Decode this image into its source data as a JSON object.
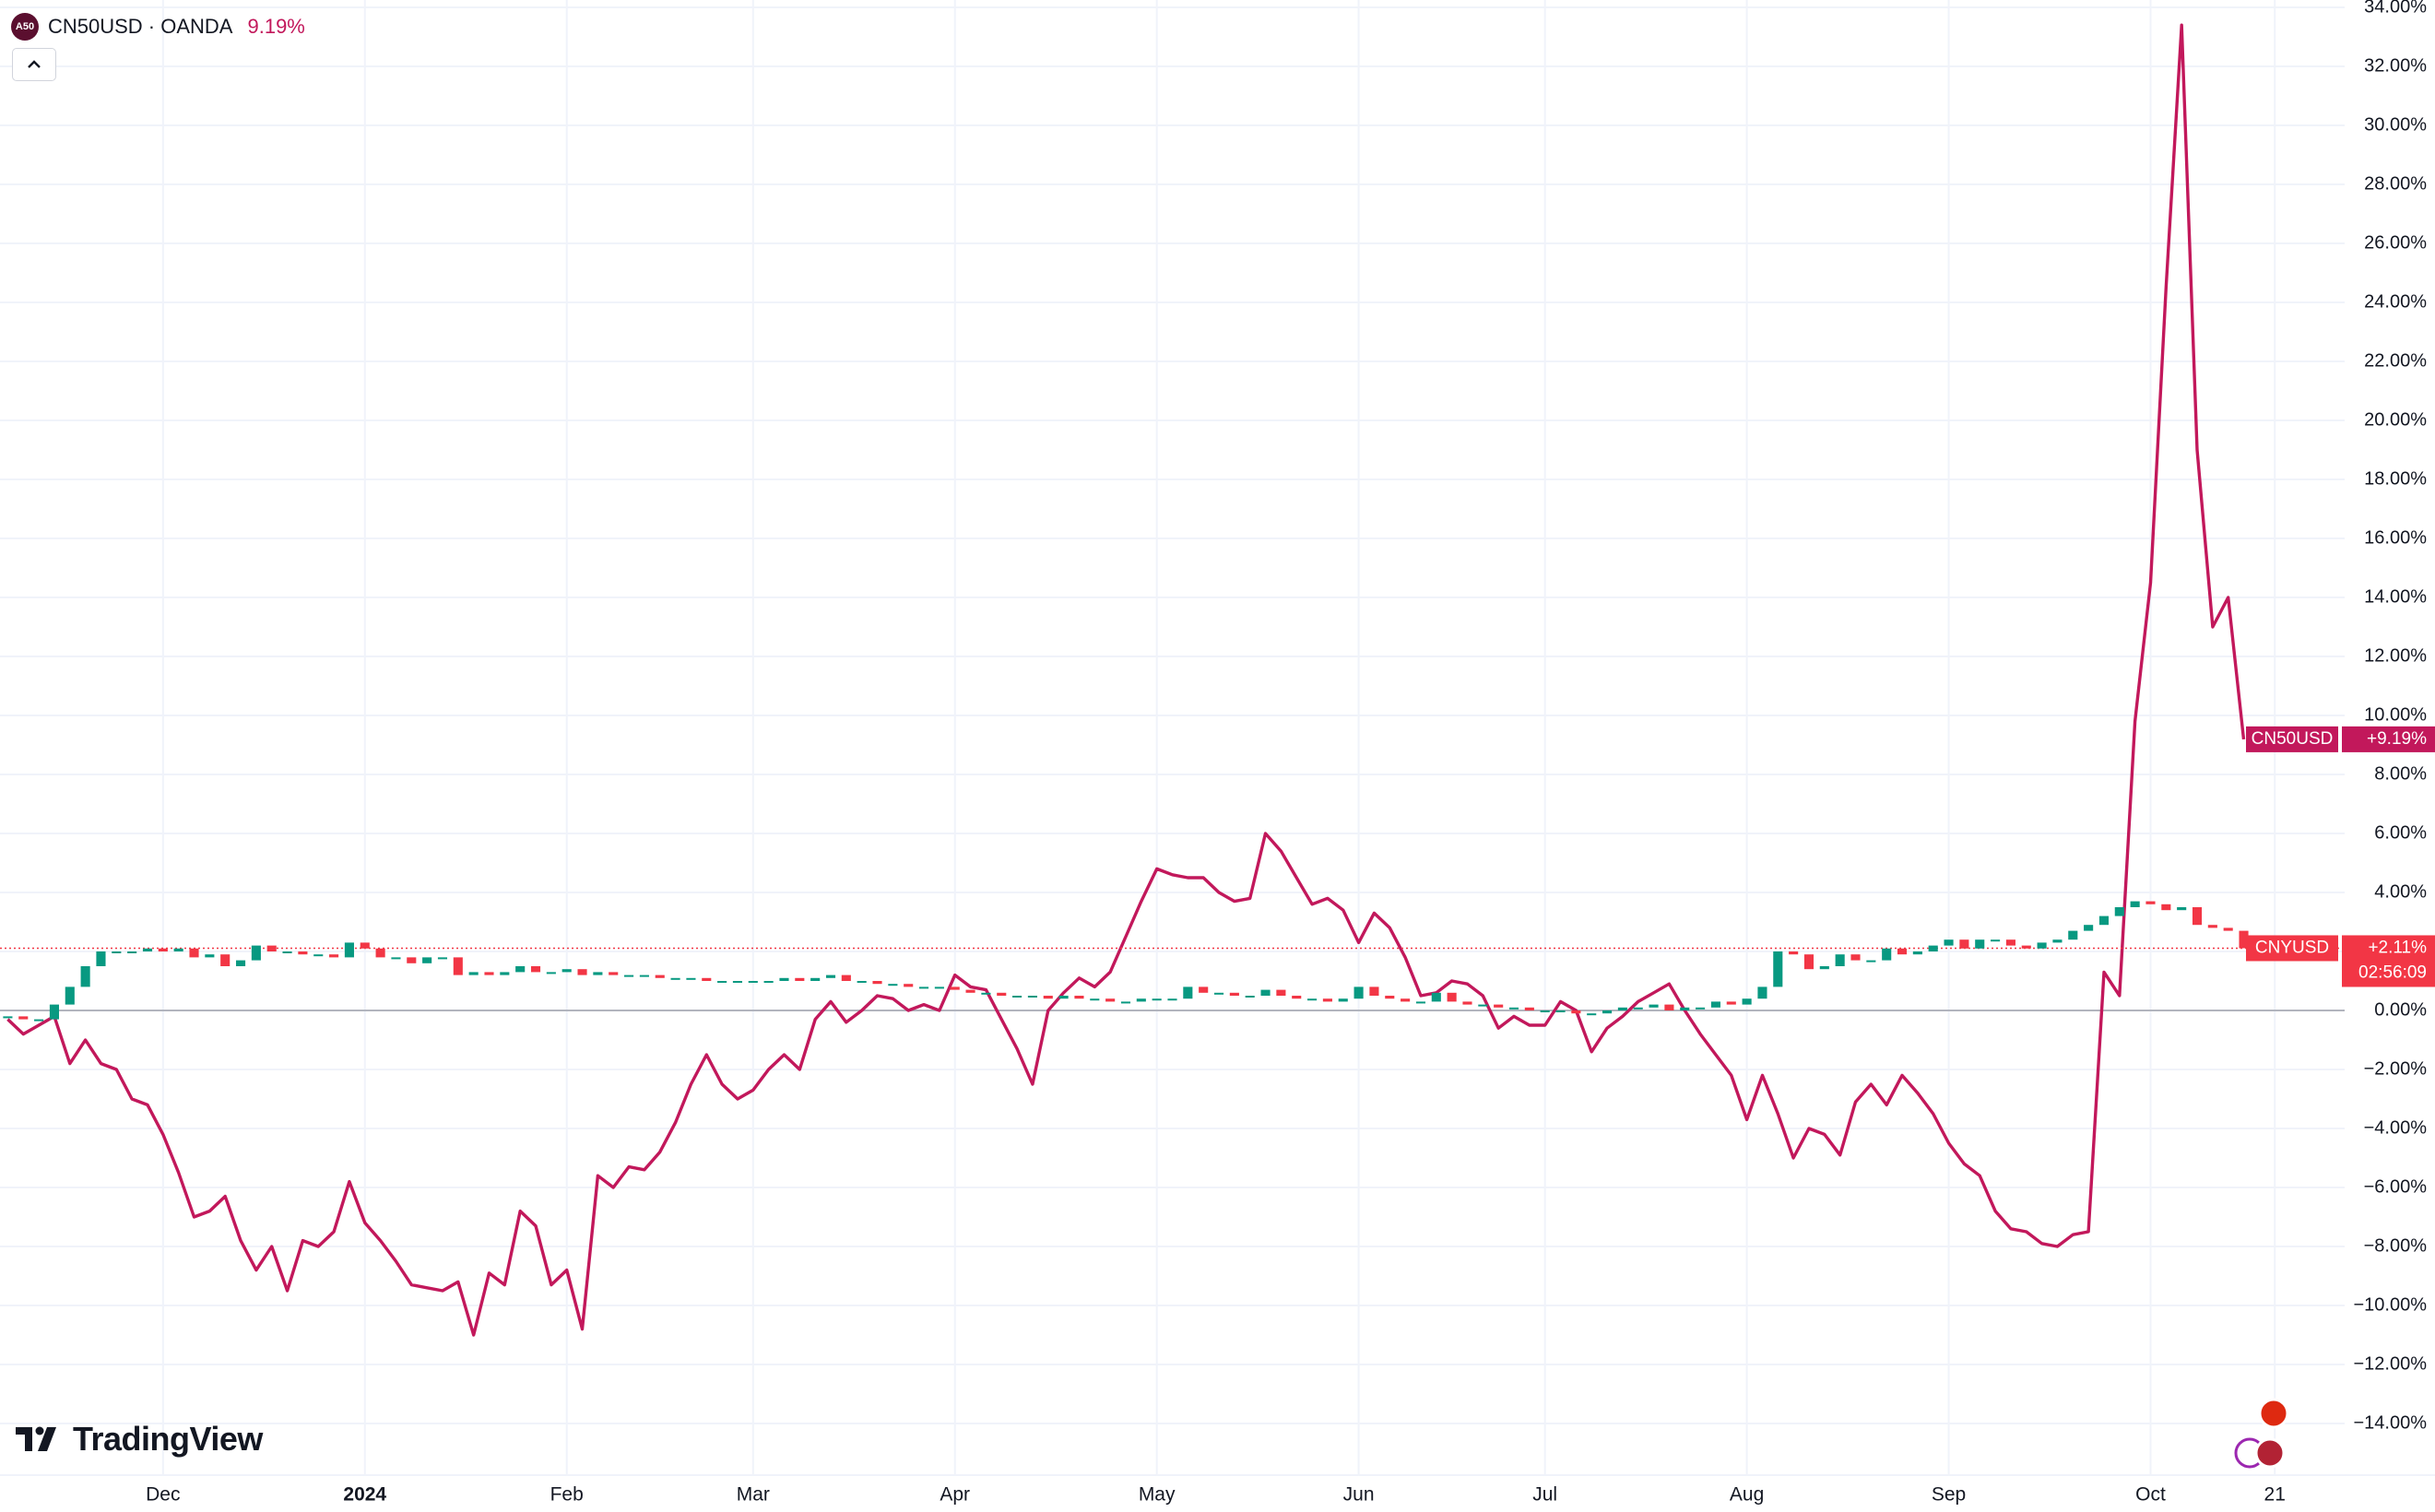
{
  "header": {
    "icon": "A50",
    "symbol": "CN50USD · OANDA",
    "change": "9.19%"
  },
  "logo": "TradingView",
  "chart_data": {
    "type": "line",
    "categories": [
      null,
      null,
      null,
      null,
      null,
      null,
      null,
      null,
      null,
      null,
      "Dec",
      null,
      null,
      null,
      null,
      null,
      null,
      null,
      null,
      null,
      null,
      null,
      null,
      "2024",
      null,
      null,
      null,
      null,
      null,
      null,
      null,
      null,
      null,
      null,
      null,
      null,
      "Feb",
      null,
      null,
      null,
      null,
      null,
      null,
      null,
      null,
      null,
      null,
      null,
      "Mar",
      null,
      null,
      null,
      null,
      null,
      null,
      null,
      null,
      null,
      null,
      null,
      null,
      "Apr",
      null,
      null,
      null,
      null,
      null,
      null,
      null,
      null,
      null,
      null,
      null,
      null,
      "May",
      null,
      null,
      null,
      null,
      null,
      null,
      null,
      null,
      null,
      null,
      null,
      null,
      "Jun",
      null,
      null,
      null,
      null,
      null,
      null,
      null,
      null,
      null,
      null,
      null,
      "Jul",
      null,
      null,
      null,
      null,
      null,
      null,
      null,
      null,
      null,
      null,
      null,
      null,
      "Aug",
      null,
      null,
      null,
      null,
      null,
      null,
      null,
      null,
      null,
      null,
      null,
      null,
      "Sep",
      null,
      null,
      null,
      null,
      null,
      null,
      null,
      null,
      null,
      null,
      null,
      null,
      "Oct",
      null,
      null,
      null,
      null,
      null,
      null,
      null,
      "21",
      null,
      null,
      null,
      null
    ],
    "series": [
      {
        "name": "CN50USD",
        "type": "line",
        "color": "#c2185b",
        "last_label": "+9.19%",
        "values": [
          -0.3,
          -0.8,
          -0.5,
          -0.2,
          -1.8,
          -1.0,
          -1.8,
          -2.0,
          -3.0,
          -3.2,
          -4.2,
          -5.5,
          -7.0,
          -6.8,
          -6.3,
          -7.8,
          -8.8,
          -8.0,
          -9.5,
          -7.8,
          -8.0,
          -7.5,
          -5.8,
          -7.2,
          -7.8,
          -8.5,
          -9.3,
          -9.4,
          -9.5,
          -9.2,
          -11.0,
          -8.9,
          -9.3,
          -6.8,
          -7.3,
          -9.3,
          -8.8,
          -10.8,
          -5.6,
          -6.0,
          -5.3,
          -5.4,
          -4.8,
          -3.8,
          -2.5,
          -1.5,
          -2.5,
          -3.0,
          -2.7,
          -2.0,
          -1.5,
          -2.0,
          -0.3,
          0.3,
          -0.4,
          0.0,
          0.5,
          0.4,
          0.0,
          0.2,
          0.0,
          1.2,
          0.8,
          0.7,
          -0.3,
          -1.3,
          -2.5,
          0.0,
          0.6,
          1.1,
          0.8,
          1.3,
          2.5,
          3.7,
          4.8,
          4.6,
          4.5,
          4.5,
          4.0,
          3.7,
          3.8,
          6.0,
          5.4,
          4.5,
          3.6,
          3.8,
          3.4,
          2.3,
          3.3,
          2.8,
          1.8,
          0.5,
          0.6,
          1.0,
          0.9,
          0.5,
          -0.6,
          -0.2,
          -0.5,
          -0.5,
          0.3,
          0.0,
          -1.4,
          -0.6,
          -0.2,
          0.3,
          0.6,
          0.9,
          0.0,
          -0.8,
          -1.5,
          -2.2,
          -3.7,
          -2.2,
          -3.5,
          -5.0,
          -4.0,
          -4.2,
          -4.9,
          -3.1,
          -2.5,
          -3.2,
          -2.2,
          -2.8,
          -3.5,
          -4.5,
          -5.2,
          -5.6,
          -6.8,
          -7.4,
          -7.5,
          -7.9,
          -8.0,
          -7.6,
          -7.5,
          1.3,
          0.5,
          9.8,
          14.5,
          24.5,
          33.4,
          19.0,
          13.0,
          14.0,
          9.19,
          null,
          null,
          null,
          null,
          null,
          null
        ]
      },
      {
        "name": "CNYUSD",
        "type": "candlestick",
        "color": "#f23645",
        "up_color": "#089981",
        "down_color": "#f23645",
        "last_label": "+2.11%",
        "countdown": "02:56:09",
        "values": [
          -0.2,
          -0.3,
          -0.3,
          0.2,
          0.8,
          1.5,
          2.0,
          2.0,
          2.0,
          2.1,
          2.0,
          2.1,
          1.8,
          1.9,
          1.5,
          1.7,
          2.2,
          2.0,
          2.0,
          1.9,
          1.9,
          1.8,
          2.3,
          2.1,
          1.8,
          1.8,
          1.6,
          1.8,
          1.8,
          1.2,
          1.3,
          1.2,
          1.3,
          1.5,
          1.3,
          1.3,
          1.4,
          1.2,
          1.3,
          1.2,
          1.2,
          1.2,
          1.1,
          1.1,
          1.1,
          1.0,
          1.0,
          1.0,
          1.0,
          1.0,
          1.1,
          1.0,
          1.1,
          1.2,
          1.0,
          1.0,
          0.9,
          0.9,
          0.8,
          0.8,
          0.8,
          0.7,
          0.6,
          0.6,
          0.5,
          0.5,
          0.5,
          0.4,
          0.5,
          0.4,
          0.4,
          0.3,
          0.3,
          0.4,
          0.4,
          0.4,
          0.8,
          0.6,
          0.6,
          0.5,
          0.5,
          0.7,
          0.5,
          0.4,
          0.4,
          0.3,
          0.4,
          0.8,
          0.5,
          0.4,
          0.3,
          0.3,
          0.6,
          0.3,
          0.2,
          0.2,
          0.1,
          0.1,
          0.0,
          0.0,
          0.0,
          -0.1,
          -0.1,
          0.0,
          0.1,
          0.1,
          0.2,
          0.0,
          0.1,
          0.1,
          0.3,
          0.2,
          0.4,
          0.8,
          2.0,
          1.9,
          1.4,
          1.5,
          1.9,
          1.7,
          1.7,
          2.1,
          1.9,
          2.0,
          2.2,
          2.4,
          2.1,
          2.4,
          2.4,
          2.2,
          2.1,
          2.3,
          2.4,
          2.7,
          2.9,
          3.2,
          3.5,
          3.7,
          3.6,
          3.4,
          3.5,
          2.9,
          2.8,
          2.7,
          2.11,
          null,
          null,
          null,
          null,
          null,
          null
        ]
      }
    ],
    "ylim": [
      -15.75,
      34.25
    ],
    "yticks": [
      {
        "value": 34,
        "label": "34.00%"
      },
      {
        "value": 32,
        "label": "32.00%"
      },
      {
        "value": 30,
        "label": "30.00%"
      },
      {
        "value": 28,
        "label": "28.00%"
      },
      {
        "value": 26,
        "label": "26.00%"
      },
      {
        "value": 24,
        "label": "24.00%"
      },
      {
        "value": 22,
        "label": "22.00%"
      },
      {
        "value": 20,
        "label": "20.00%"
      },
      {
        "value": 18,
        "label": "18.00%"
      },
      {
        "value": 16,
        "label": "16.00%"
      },
      {
        "value": 14,
        "label": "14.00%"
      },
      {
        "value": 12,
        "label": "12.00%"
      },
      {
        "value": 10,
        "label": "10.00%"
      },
      {
        "value": 8,
        "label": "8.00%"
      },
      {
        "value": 6,
        "label": "6.00%"
      },
      {
        "value": 4,
        "label": "4.00%"
      },
      {
        "value": 2,
        "label": "2.00%"
      },
      {
        "value": 0,
        "label": "0.00%"
      },
      {
        "value": -2,
        "label": "−2.00%"
      },
      {
        "value": -4,
        "label": "−4.00%"
      },
      {
        "value": -6,
        "label": "−6.00%"
      },
      {
        "value": -8,
        "label": "−8.00%"
      },
      {
        "value": -10,
        "label": "−10.00%"
      },
      {
        "value": -12,
        "label": "−12.00%"
      },
      {
        "value": -14,
        "label": "−14.00%"
      }
    ],
    "grid": true
  }
}
